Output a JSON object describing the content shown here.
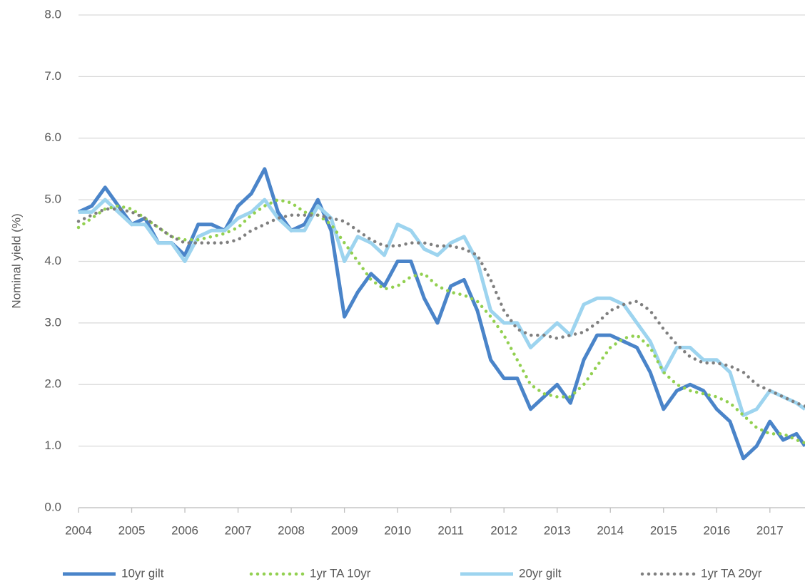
{
  "chart_data": {
    "type": "line",
    "y_label": "Nominal yield (%)",
    "x": [
      2004,
      2004.25,
      2004.5,
      2004.75,
      2005,
      2005.25,
      2005.5,
      2005.75,
      2006,
      2006.25,
      2006.5,
      2006.75,
      2007,
      2007.25,
      2007.5,
      2007.75,
      2008,
      2008.25,
      2008.5,
      2008.75,
      2009,
      2009.25,
      2009.5,
      2009.75,
      2010,
      2010.25,
      2010.5,
      2010.75,
      2011,
      2011.25,
      2011.5,
      2011.75,
      2012,
      2012.25,
      2012.5,
      2012.75,
      2013,
      2013.25,
      2013.5,
      2013.75,
      2014,
      2014.25,
      2014.5,
      2014.75,
      2015,
      2015.25,
      2015.5,
      2015.75,
      2016,
      2016.25,
      2016.5,
      2016.75,
      2017,
      2017.25,
      2017.5,
      2017.66
    ],
    "series": [
      {
        "name": "10yr gilt",
        "color": "#4a84c9",
        "style": "solid",
        "values": [
          4.8,
          4.9,
          5.2,
          4.9,
          4.6,
          4.7,
          4.3,
          4.3,
          4.1,
          4.6,
          4.6,
          4.5,
          4.9,
          5.1,
          5.5,
          4.8,
          4.5,
          4.6,
          5.0,
          4.5,
          3.1,
          3.5,
          3.8,
          3.6,
          4.0,
          4.0,
          3.4,
          3.0,
          3.6,
          3.7,
          3.2,
          2.4,
          2.1,
          2.1,
          1.6,
          1.8,
          2.0,
          1.7,
          2.4,
          2.8,
          2.8,
          2.7,
          2.6,
          2.2,
          1.6,
          1.9,
          2.0,
          1.9,
          1.6,
          1.4,
          0.8,
          1.0,
          1.4,
          1.1,
          1.2,
          1.0
        ]
      },
      {
        "name": "1yr TA 10yr",
        "color": "#92d050",
        "style": "dotted",
        "values": [
          4.55,
          4.7,
          4.85,
          4.9,
          4.85,
          4.7,
          4.55,
          4.4,
          4.35,
          4.35,
          4.4,
          4.45,
          4.55,
          4.75,
          4.9,
          5.0,
          4.95,
          4.8,
          4.75,
          4.6,
          4.3,
          4.0,
          3.7,
          3.55,
          3.6,
          3.75,
          3.8,
          3.6,
          3.5,
          3.45,
          3.35,
          3.1,
          2.8,
          2.4,
          2.0,
          1.85,
          1.8,
          1.8,
          2.0,
          2.3,
          2.6,
          2.75,
          2.8,
          2.6,
          2.2,
          2.0,
          1.9,
          1.85,
          1.8,
          1.7,
          1.5,
          1.3,
          1.2,
          1.2,
          1.1,
          1.05
        ]
      },
      {
        "name": "20yr gilt",
        "color": "#9dd4ef",
        "style": "solid",
        "values": [
          4.8,
          4.8,
          5.0,
          4.8,
          4.6,
          4.6,
          4.3,
          4.3,
          4.0,
          4.4,
          4.5,
          4.5,
          4.7,
          4.8,
          5.0,
          4.7,
          4.5,
          4.5,
          4.9,
          4.7,
          4.0,
          4.4,
          4.3,
          4.1,
          4.6,
          4.5,
          4.2,
          4.1,
          4.3,
          4.4,
          4.0,
          3.2,
          3.0,
          3.0,
          2.6,
          2.8,
          3.0,
          2.8,
          3.3,
          3.4,
          3.4,
          3.3,
          3.0,
          2.7,
          2.2,
          2.6,
          2.6,
          2.4,
          2.4,
          2.2,
          1.5,
          1.6,
          1.9,
          1.8,
          1.7,
          1.6
        ]
      },
      {
        "name": "1yr TA 20yr",
        "color": "#7f7f7f",
        "style": "dotted",
        "values": [
          4.65,
          4.75,
          4.85,
          4.85,
          4.8,
          4.7,
          4.55,
          4.4,
          4.3,
          4.3,
          4.3,
          4.3,
          4.35,
          4.5,
          4.6,
          4.7,
          4.75,
          4.75,
          4.75,
          4.7,
          4.65,
          4.5,
          4.35,
          4.25,
          4.25,
          4.3,
          4.3,
          4.25,
          4.25,
          4.2,
          4.1,
          3.7,
          3.2,
          2.9,
          2.8,
          2.8,
          2.75,
          2.8,
          2.85,
          3.0,
          3.2,
          3.3,
          3.35,
          3.2,
          2.9,
          2.65,
          2.45,
          2.35,
          2.35,
          2.3,
          2.2,
          2.0,
          1.9,
          1.8,
          1.7,
          1.65
        ]
      }
    ],
    "xlim": [
      2004,
      2017.66
    ],
    "xticks": [
      2004,
      2005,
      2006,
      2007,
      2008,
      2009,
      2010,
      2011,
      2012,
      2013,
      2014,
      2015,
      2016,
      2017
    ],
    "ylim": [
      0,
      8
    ],
    "yticks": [
      {
        "value": 0,
        "label": "0.0"
      },
      {
        "value": 1,
        "label": "1.0"
      },
      {
        "value": 2,
        "label": "2.0"
      },
      {
        "value": 3,
        "label": "3.0"
      },
      {
        "value": 4,
        "label": "4.0"
      },
      {
        "value": 5,
        "label": "5.0"
      },
      {
        "value": 6,
        "label": "6.0"
      },
      {
        "value": 7,
        "label": "7.0"
      },
      {
        "value": 8,
        "label": "8.0"
      }
    ],
    "grid": true,
    "legend": "bottom"
  }
}
